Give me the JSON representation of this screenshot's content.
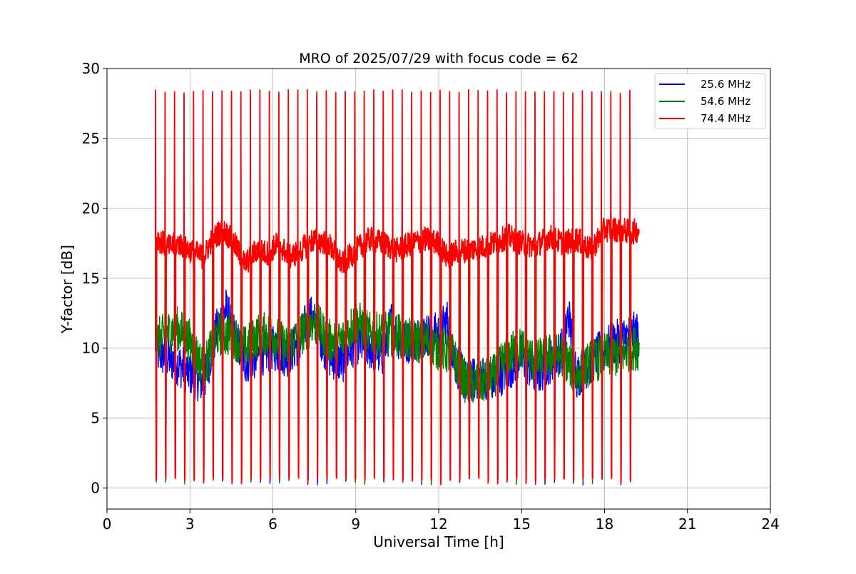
{
  "chart_data": {
    "type": "line",
    "title": "MRO of 2025/07/29 with focus code = 62",
    "xlabel": "Universal Time [h]",
    "ylabel": "Y-factor [dB]",
    "xlim": [
      0,
      24
    ],
    "ylim": [
      -1.5,
      30
    ],
    "xticks": [
      0,
      3,
      6,
      9,
      12,
      15,
      18,
      21,
      24
    ],
    "yticks": [
      0,
      5,
      10,
      15,
      20,
      25,
      30
    ],
    "grid": true,
    "legend_position": "top-right",
    "data_range_x": [
      1.75,
      19.25
    ],
    "cycle_count": 51,
    "series": [
      {
        "name": "25.6 MHz",
        "color": "#0000ff",
        "peak": 28.4,
        "trough": 0.2,
        "baseline": [
          [
            1.75,
            9.8
          ],
          [
            2.5,
            9.0
          ],
          [
            3.0,
            8.2
          ],
          [
            3.5,
            7.5
          ],
          [
            4.0,
            11.5
          ],
          [
            4.3,
            12.8
          ],
          [
            4.7,
            10.5
          ],
          [
            5.0,
            9.0
          ],
          [
            5.5,
            9.5
          ],
          [
            6.0,
            10.0
          ],
          [
            6.5,
            9.5
          ],
          [
            7.0,
            10.5
          ],
          [
            7.3,
            12.5
          ],
          [
            7.6,
            11.5
          ],
          [
            8.0,
            9.5
          ],
          [
            8.5,
            9.0
          ],
          [
            9.0,
            10.5
          ],
          [
            9.5,
            10.0
          ],
          [
            10.0,
            9.5
          ],
          [
            10.3,
            12.0
          ],
          [
            10.6,
            10.5
          ],
          [
            11.0,
            10.5
          ],
          [
            11.5,
            11.0
          ],
          [
            12.0,
            11.0
          ],
          [
            12.3,
            12.0
          ],
          [
            12.6,
            9.0
          ],
          [
            13.0,
            7.5
          ],
          [
            13.5,
            8.0
          ],
          [
            14.0,
            7.8
          ],
          [
            14.5,
            8.5
          ],
          [
            15.0,
            9.5
          ],
          [
            15.5,
            8.0
          ],
          [
            16.0,
            9.0
          ],
          [
            16.5,
            10.0
          ],
          [
            16.7,
            12.5
          ],
          [
            17.0,
            8.0
          ],
          [
            17.5,
            9.0
          ],
          [
            18.0,
            10.0
          ],
          [
            18.5,
            10.5
          ],
          [
            19.0,
            11.0
          ],
          [
            19.25,
            11.0
          ]
        ]
      },
      {
        "name": "54.6 MHz",
        "color": "#008000",
        "peak": 28.4,
        "trough": 0.2,
        "baseline": [
          [
            1.75,
            10.5
          ],
          [
            2.5,
            11.5
          ],
          [
            3.0,
            10.5
          ],
          [
            3.5,
            8.5
          ],
          [
            4.0,
            11.0
          ],
          [
            4.5,
            11.0
          ],
          [
            5.0,
            10.0
          ],
          [
            5.5,
            11.0
          ],
          [
            6.0,
            11.0
          ],
          [
            6.5,
            10.0
          ],
          [
            7.0,
            11.0
          ],
          [
            7.5,
            12.0
          ],
          [
            8.0,
            10.5
          ],
          [
            8.5,
            10.5
          ],
          [
            9.0,
            12.0
          ],
          [
            9.5,
            11.0
          ],
          [
            10.0,
            11.0
          ],
          [
            10.5,
            11.0
          ],
          [
            11.0,
            10.5
          ],
          [
            11.5,
            10.5
          ],
          [
            12.0,
            10.0
          ],
          [
            12.5,
            9.5
          ],
          [
            13.0,
            7.5
          ],
          [
            13.5,
            7.5
          ],
          [
            14.0,
            8.0
          ],
          [
            14.5,
            9.5
          ],
          [
            15.0,
            10.0
          ],
          [
            15.5,
            9.0
          ],
          [
            16.0,
            9.5
          ],
          [
            16.5,
            9.5
          ],
          [
            17.0,
            8.0
          ],
          [
            17.5,
            9.0
          ],
          [
            18.0,
            9.5
          ],
          [
            18.5,
            9.5
          ],
          [
            19.0,
            10.0
          ],
          [
            19.25,
            10.0
          ]
        ]
      },
      {
        "name": "74.4 MHz",
        "color": "#ff0000",
        "peak": 28.5,
        "trough": 0.2,
        "baseline": [
          [
            1.75,
            18.0
          ],
          [
            2.2,
            17.2
          ],
          [
            2.6,
            17.5
          ],
          [
            3.0,
            17.0
          ],
          [
            3.5,
            16.5
          ],
          [
            3.8,
            17.8
          ],
          [
            4.2,
            18.5
          ],
          [
            4.6,
            17.5
          ],
          [
            5.0,
            16.0
          ],
          [
            5.4,
            17.0
          ],
          [
            5.8,
            16.8
          ],
          [
            6.2,
            17.5
          ],
          [
            6.6,
            16.5
          ],
          [
            7.0,
            17.0
          ],
          [
            7.5,
            17.8
          ],
          [
            8.0,
            17.5
          ],
          [
            8.5,
            16.0
          ],
          [
            9.0,
            17.0
          ],
          [
            9.5,
            17.8
          ],
          [
            10.0,
            17.5
          ],
          [
            10.5,
            17.0
          ],
          [
            11.0,
            17.5
          ],
          [
            11.5,
            17.8
          ],
          [
            12.0,
            17.5
          ],
          [
            12.3,
            16.5
          ],
          [
            12.7,
            17.0
          ],
          [
            13.0,
            17.0
          ],
          [
            13.5,
            17.2
          ],
          [
            14.0,
            17.5
          ],
          [
            14.5,
            18.0
          ],
          [
            15.0,
            17.5
          ],
          [
            15.5,
            17.3
          ],
          [
            16.0,
            18.0
          ],
          [
            16.5,
            17.5
          ],
          [
            17.0,
            17.8
          ],
          [
            17.5,
            17.0
          ],
          [
            18.0,
            18.5
          ],
          [
            18.5,
            18.5
          ],
          [
            19.0,
            18.3
          ],
          [
            19.25,
            18.5
          ]
        ]
      }
    ]
  }
}
